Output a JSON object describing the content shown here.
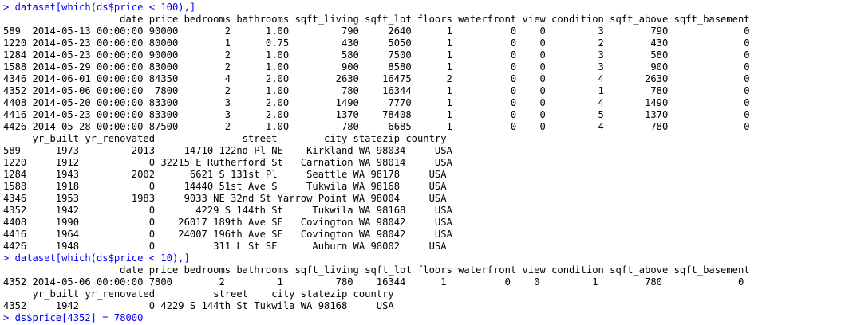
{
  "console": {
    "prompt": "> ",
    "lines": [
      {
        "kind": "input",
        "text": "dataset[which(ds$price < 100),]"
      },
      {
        "kind": "output",
        "text": "                    date price bedrooms bathrooms sqft_living sqft_lot floors waterfront view condition sqft_above sqft_basement"
      },
      {
        "kind": "output",
        "text": "589  2014-05-13 00:00:00 90000        2      1.00         790     2640      1          0    0         3        790             0"
      },
      {
        "kind": "output",
        "text": "1220 2014-05-23 00:00:00 80000        1      0.75         430     5050      1          0    0         2        430             0"
      },
      {
        "kind": "output",
        "text": "1284 2014-05-23 00:00:00 90000        2      1.00         580     7500      1          0    0         3        580             0"
      },
      {
        "kind": "output",
        "text": "1588 2014-05-29 00:00:00 83000        2      1.00         900     8580      1          0    0         3        900             0"
      },
      {
        "kind": "output",
        "text": "4346 2014-06-01 00:00:00 84350        4      2.00        2630    16475      2          0    0         4       2630             0"
      },
      {
        "kind": "output",
        "text": "4352 2014-05-06 00:00:00  7800        2      1.00         780    16344      1          0    0         1        780             0"
      },
      {
        "kind": "output",
        "text": "4408 2014-05-20 00:00:00 83300        3      2.00        1490     7770      1          0    0         4       1490             0"
      },
      {
        "kind": "output",
        "text": "4416 2014-05-23 00:00:00 83300        3      2.00        1370    78408      1          0    0         5       1370             0"
      },
      {
        "kind": "output",
        "text": "4426 2014-05-28 00:00:00 87500        2      1.00         780     6685      1          0    0         4        780             0"
      },
      {
        "kind": "output",
        "text": "     yr_built yr_renovated               street        city statezip country"
      },
      {
        "kind": "output",
        "text": "589      1973         2013     14710 122nd Pl NE    Kirkland WA 98034     USA"
      },
      {
        "kind": "output",
        "text": "1220     1912            0 32215 E Rutherford St   Carnation WA 98014     USA"
      },
      {
        "kind": "output",
        "text": "1284     1943         2002      6621 S 131st Pl     Seattle WA 98178     USA"
      },
      {
        "kind": "output",
        "text": "1588     1918            0     14440 51st Ave S     Tukwila WA 98168     USA"
      },
      {
        "kind": "output",
        "text": "4346     1953         1983     9033 NE 32nd St Yarrow Point WA 98004     USA"
      },
      {
        "kind": "output",
        "text": "4352     1942            0       4229 S 144th St     Tukwila WA 98168     USA"
      },
      {
        "kind": "output",
        "text": "4408     1990            0    26017 189th Ave SE   Covington WA 98042     USA"
      },
      {
        "kind": "output",
        "text": "4416     1964            0    24007 196th Ave SE   Covington WA 98042     USA"
      },
      {
        "kind": "output",
        "text": "4426     1948            0          311 L St SE      Auburn WA 98002     USA"
      },
      {
        "kind": "input",
        "text": "dataset[which(ds$price < 10),]"
      },
      {
        "kind": "output",
        "text": "                    date price bedrooms bathrooms sqft_living sqft_lot floors waterfront view condition sqft_above sqft_basement"
      },
      {
        "kind": "output",
        "text": "4352 2014-05-06 00:00:00 7800        2         1         780    16344      1          0    0         1        780             0"
      },
      {
        "kind": "output",
        "text": "     yr_built yr_renovated          street    city statezip country"
      },
      {
        "kind": "output",
        "text": "4352     1942            0 4229 S 144th St Tukwila WA 98168     USA"
      },
      {
        "kind": "input",
        "text": "ds$price[4352] = 78000"
      }
    ]
  }
}
